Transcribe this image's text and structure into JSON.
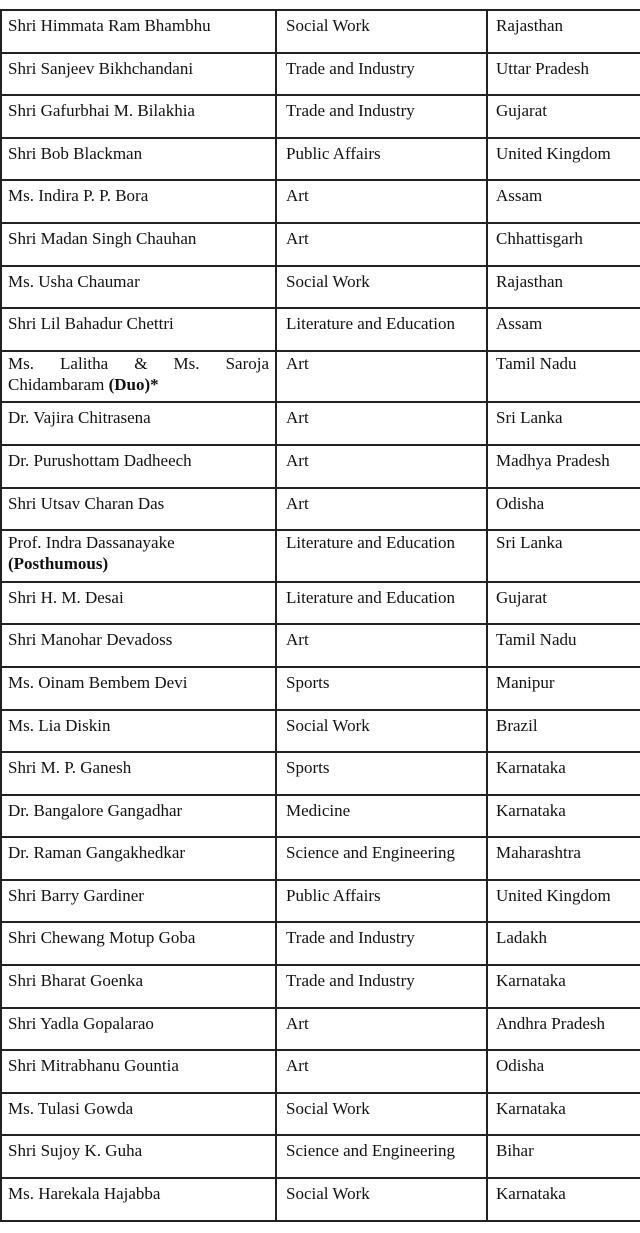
{
  "rows": [
    {
      "name": "Shri Himmata Ram Bhambhu",
      "field": "Social Work",
      "state": "Rajasthan"
    },
    {
      "name": "Shri Sanjeev Bikhchandani",
      "field": "Trade and Industry",
      "state": "Uttar Pradesh"
    },
    {
      "name": "Shri Gafurbhai M. Bilakhia",
      "field": "Trade and Industry",
      "state": "Gujarat"
    },
    {
      "name": "Shri Bob Blackman",
      "field": "Public Affairs",
      "state": "United Kingdom"
    },
    {
      "name": "Ms. Indira P. P. Bora",
      "field": "Art",
      "state": "Assam"
    },
    {
      "name": "Shri Madan Singh Chauhan",
      "field": "Art",
      "state": "Chhattisgarh"
    },
    {
      "name": "Ms. Usha Chaumar",
      "field": "Social Work",
      "state": "Rajasthan"
    },
    {
      "name": "Shri Lil Bahadur Chettri",
      "field": "Literature and Education",
      "state": "Assam"
    },
    {
      "name": "Ms. Lalitha & Ms. Saroja Chidambaram",
      "note": "(Duo)*",
      "field": "Art",
      "state": "Tamil Nadu"
    },
    {
      "name": "Dr. Vajira Chitrasena",
      "field": "Art",
      "state": "Sri Lanka"
    },
    {
      "name": "Dr. Purushottam Dadheech",
      "field": "Art",
      "state": "Madhya Pradesh"
    },
    {
      "name": "Shri Utsav Charan Das",
      "field": "Art",
      "state": "Odisha"
    },
    {
      "name": "Prof. Indra Dassanayake",
      "note": "(Posthumous)",
      "field": "Literature and Education",
      "state": "Sri Lanka"
    },
    {
      "name": "Shri H. M. Desai",
      "field": "Literature and Education",
      "state": "Gujarat"
    },
    {
      "name": "Shri Manohar Devadoss",
      "field": "Art",
      "state": "Tamil Nadu"
    },
    {
      "name": "Ms. Oinam Bembem Devi",
      "field": "Sports",
      "state": "Manipur"
    },
    {
      "name": "Ms. Lia Diskin",
      "field": "Social Work",
      "state": "Brazil"
    },
    {
      "name": "Shri M. P. Ganesh",
      "field": "Sports",
      "state": "Karnataka"
    },
    {
      "name": "Dr. Bangalore Gangadhar",
      "field": "Medicine",
      "state": "Karnataka"
    },
    {
      "name": "Dr. Raman Gangakhedkar",
      "field": "Science and Engineering",
      "state": "Maharashtra"
    },
    {
      "name": "Shri Barry Gardiner",
      "field": "Public Affairs",
      "state": "United Kingdom"
    },
    {
      "name": "Shri Chewang Motup Goba",
      "field": "Trade and Industry",
      "state": "Ladakh"
    },
    {
      "name": "Shri Bharat Goenka",
      "field": "Trade and Industry",
      "state": "Karnataka"
    },
    {
      "name": "Shri Yadla Gopalarao",
      "field": "Art",
      "state": "Andhra Pradesh"
    },
    {
      "name": "Shri Mitrabhanu Gountia",
      "field": "Art",
      "state": "Odisha"
    },
    {
      "name": "Ms. Tulasi Gowda",
      "field": "Social Work",
      "state": "Karnataka"
    },
    {
      "name": "Shri Sujoy K. Guha",
      "field": "Science and Engineering",
      "state": "Bihar"
    },
    {
      "name": "Ms. Harekala Hajabba",
      "field": "Social Work",
      "state": "Karnataka"
    }
  ]
}
